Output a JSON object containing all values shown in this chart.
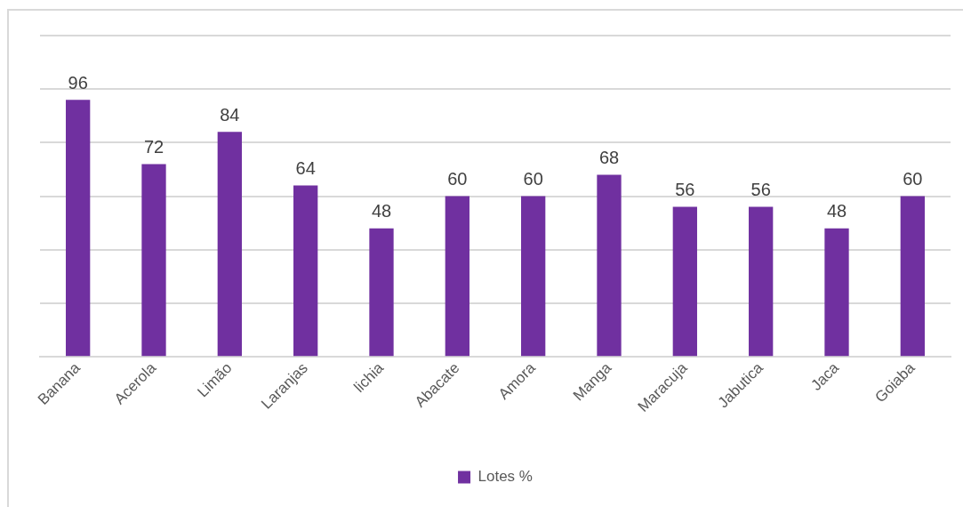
{
  "chart_data": {
    "type": "bar",
    "categories": [
      "Banana",
      "Acerola",
      "Limão",
      "Laranjas",
      "lichia",
      "Abacate",
      "Amora",
      "Manga",
      "Maracuja",
      "Jabutica",
      "Jaca",
      "Goiaba"
    ],
    "series": [
      {
        "name": "Lotes %",
        "color": "#7030a0",
        "values": [
          96,
          72,
          84,
          64,
          48,
          60,
          60,
          68,
          56,
          56,
          48,
          60
        ]
      }
    ],
    "ylim": [
      0,
      120
    ],
    "yticks": [
      {
        "value": 0,
        "label": null
      },
      {
        "value": 20,
        "label": null
      },
      {
        "value": 40,
        "label": null
      },
      {
        "value": 60,
        "label": null
      },
      {
        "value": 80,
        "label": null
      },
      {
        "value": 100,
        "label": null
      },
      {
        "value": 120,
        "label": null
      }
    ],
    "grid": "y",
    "legend": "bottom",
    "tick_labels": "x",
    "data_labels": true
  }
}
